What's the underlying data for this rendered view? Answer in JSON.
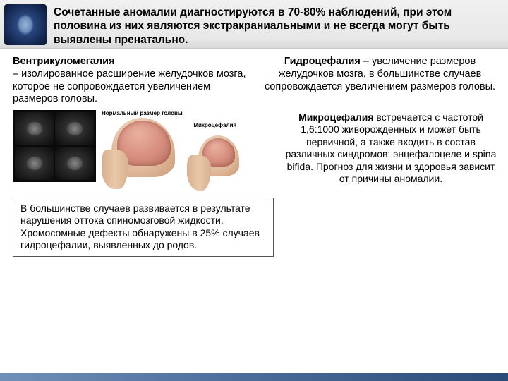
{
  "header": {
    "text": "Сочетанные аномалии диагностируются в 70-80% наблюдений, при этом половина из них являются экстракраниальными и не всегда могут быть выявлены пренатально."
  },
  "ventriculomegaly": {
    "title": "Вентрикуломегалия",
    "body": " – изолированное расширение желудочков мозга, которое не сопровождается увеличением размеров головы."
  },
  "hydrocephaly": {
    "title": "Гидроцефалия",
    "body": " – увеличение размеров желудочков мозга, в большинстве случаев сопровождается увеличением размеров головы."
  },
  "labels": {
    "normal": "Нормальный размер головы",
    "micro": "Микроцефалия"
  },
  "box": {
    "text": "В большинстве случаев развивается в результате нарушения оттока спиномозговой жидкости. Хромосомные дефекты обнаружены в 25% случаев гидроцефалии, выявленных до родов."
  },
  "microcephaly": {
    "title": "Микроцефалия",
    "body": " встречается с частотой 1,6:1000 живорожденных и может быть первичной, а также входить в состав различных синдромов: энцефалоцеле и spina bifida. Прогноз для жизни и здоровья зависит от причины аномалии."
  }
}
